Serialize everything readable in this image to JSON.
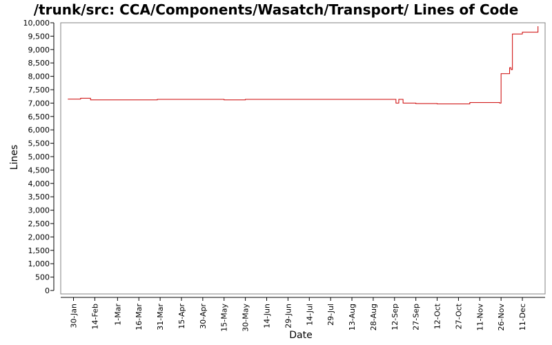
{
  "colors": {
    "line": "#cc0000",
    "axis": "#000000",
    "plot_border": "#808080",
    "background": "#ffffff"
  },
  "chart_data": {
    "type": "line",
    "title": "/trunk/src: CCA/Components/Wasatch/Transport/ Lines of Code",
    "xlabel": "Date",
    "ylabel": "Lines",
    "ylim": [
      0,
      10000
    ],
    "yticks": [
      0,
      500,
      1000,
      1500,
      2000,
      2500,
      3000,
      3500,
      4000,
      4500,
      5000,
      5500,
      6000,
      6500,
      7000,
      7500,
      8000,
      8500,
      9000,
      9500,
      10000
    ],
    "ytick_labels": [
      "0",
      "500",
      "1,000",
      "1,500",
      "2,000",
      "2,500",
      "3,000",
      "3,500",
      "4,000",
      "4,500",
      "5,000",
      "5,500",
      "6,000",
      "6,500",
      "7,000",
      "7,500",
      "8,000",
      "8,500",
      "9,000",
      "9,500",
      "10,000"
    ],
    "xlim": [
      "2012-01-21",
      "2012-12-27"
    ],
    "xticks": [
      "2012-01-30",
      "2012-02-14",
      "2012-03-01",
      "2012-03-16",
      "2012-03-31",
      "2012-04-15",
      "2012-04-30",
      "2012-05-15",
      "2012-05-30",
      "2012-06-14",
      "2012-06-29",
      "2012-07-14",
      "2012-07-29",
      "2012-08-13",
      "2012-08-28",
      "2012-09-12",
      "2012-09-27",
      "2012-10-12",
      "2012-10-27",
      "2012-11-11",
      "2012-11-26",
      "2012-12-11"
    ],
    "xtick_labels": [
      "30-Jan",
      "14-Feb",
      "1-Mar",
      "16-Mar",
      "31-Mar",
      "15-Apr",
      "30-Apr",
      "15-May",
      "30-May",
      "14-Jun",
      "29-Jun",
      "14-Jul",
      "29-Jul",
      "13-Aug",
      "28-Aug",
      "12-Sep",
      "27-Sep",
      "12-Oct",
      "27-Oct",
      "11-Nov",
      "26-Nov",
      "11-Dec"
    ],
    "grid": false,
    "step": true,
    "series": [
      {
        "x": [
          "2012-01-26",
          "2012-02-04",
          "2012-02-11",
          "2012-03-29",
          "2012-05-15",
          "2012-05-30",
          "2012-09-13",
          "2012-09-15",
          "2012-09-18",
          "2012-09-27",
          "2012-10-12",
          "2012-11-04",
          "2012-11-25",
          "2012-11-26",
          "2012-12-02",
          "2012-12-03",
          "2012-12-04",
          "2012-12-11",
          "2012-12-22"
        ],
        "y": [
          7150,
          7180,
          7120,
          7140,
          7120,
          7140,
          7000,
          7140,
          7000,
          6980,
          6970,
          7020,
          7000,
          8100,
          8320,
          8250,
          9580,
          9650,
          9870
        ]
      }
    ]
  }
}
